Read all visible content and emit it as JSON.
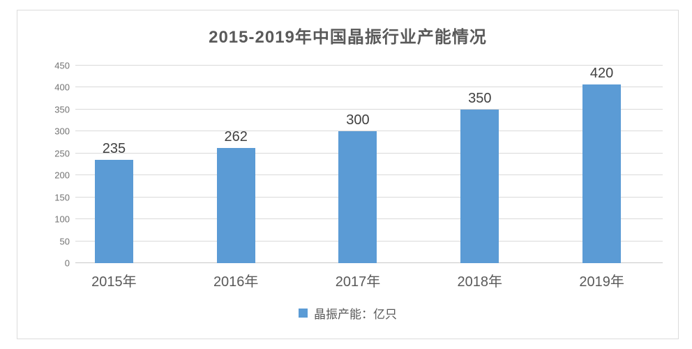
{
  "chart_data": {
    "type": "bar",
    "title": "2015-2019年中国晶振行业产能情况",
    "categories": [
      "2015年",
      "2016年",
      "2017年",
      "2018年",
      "2019年"
    ],
    "values": [
      235,
      262,
      300,
      350,
      420
    ],
    "data_labels_shown": true,
    "xlabel": "",
    "ylabel": "",
    "ylim": [
      0,
      450
    ],
    "ytick_step": 50,
    "yticks": [
      0,
      50,
      100,
      150,
      200,
      250,
      300,
      350,
      400,
      450
    ],
    "grid": true,
    "legend_entries": [
      "晶振产能：亿只"
    ],
    "legend_position": "bottom",
    "colors": {
      "bar": "#5b9bd5",
      "gridline": "#d9d9d9",
      "title_text": "#595959",
      "axis_text": "#737373",
      "category_text": "#595959",
      "data_label_text": "#404040",
      "frame_border": "#dcdcdc"
    }
  }
}
